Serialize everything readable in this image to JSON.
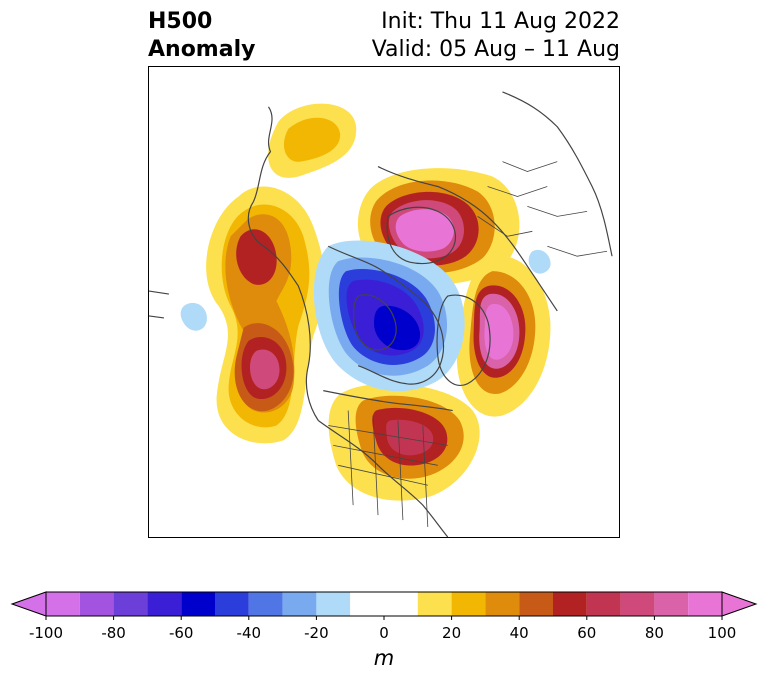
{
  "header": {
    "left_line1": "H500",
    "left_line2": "Anomaly",
    "right_line1": "Init: Thu 11 Aug 2022",
    "right_line2": "Valid: 05 Aug – 11 Aug"
  },
  "colorbar": {
    "unit": "m",
    "min": -100,
    "max": 100,
    "tick_labels": [
      "-100",
      "-80",
      "-60",
      "-40",
      "-20",
      "0",
      "20",
      "40",
      "60",
      "80",
      "100"
    ],
    "tick_values": [
      -100,
      -80,
      -60,
      -40,
      -20,
      0,
      20,
      40,
      60,
      80,
      100
    ],
    "bins": [
      {
        "from": -100,
        "to": -90,
        "color": "#d471e8"
      },
      {
        "from": -90,
        "to": -80,
        "color": "#a253e0"
      },
      {
        "from": -80,
        "to": -70,
        "color": "#6b3fd8"
      },
      {
        "from": -70,
        "to": -60,
        "color": "#3a1fd6"
      },
      {
        "from": -60,
        "to": -50,
        "color": "#0000cc"
      },
      {
        "from": -50,
        "to": -40,
        "color": "#2b3ddb"
      },
      {
        "from": -40,
        "to": -30,
        "color": "#4f76e4"
      },
      {
        "from": -30,
        "to": -20,
        "color": "#79aaf0"
      },
      {
        "from": -20,
        "to": -10,
        "color": "#afdbf8"
      },
      {
        "from": -10,
        "to": 10,
        "color": "#ffffff"
      },
      {
        "from": 10,
        "to": 20,
        "color": "#fde04e"
      },
      {
        "from": 20,
        "to": 30,
        "color": "#f2b703"
      },
      {
        "from": 30,
        "to": 40,
        "color": "#df8b0c"
      },
      {
        "from": 40,
        "to": 50,
        "color": "#c85a18"
      },
      {
        "from": 50,
        "to": 60,
        "color": "#b22222"
      },
      {
        "from": 60,
        "to": 70,
        "color": "#c23552"
      },
      {
        "from": 70,
        "to": 80,
        "color": "#cf4a7a"
      },
      {
        "from": 80,
        "to": 90,
        "color": "#d962a8"
      },
      {
        "from": 90,
        "to": 100,
        "color": "#e874d6"
      }
    ],
    "under_color": "#d471e8",
    "over_color": "#e874d6"
  },
  "map": {
    "projection": "polar stereographic, North America / Arctic",
    "features": [
      "coastlines",
      "country borders",
      "US state boundaries",
      "provinces"
    ],
    "anomaly_centers": [
      {
        "region": "Alaska / Beaufort",
        "sign": "positive",
        "peak_m": 20
      },
      {
        "region": "Gulf of Alaska",
        "sign": "positive",
        "peak_m": 60
      },
      {
        "region": "NE Pacific off Pacific Northwest",
        "sign": "positive",
        "peak_m": 80
      },
      {
        "region": "Far NE Pacific",
        "sign": "negative",
        "peak_m": -20
      },
      {
        "region": "Canadian Arctic / Hudson Bay",
        "sign": "negative",
        "peak_m": -60
      },
      {
        "region": "Scandinavia / N Europe",
        "sign": "positive",
        "peak_m": 90
      },
      {
        "region": "Greenland / N Atlantic",
        "sign": "positive",
        "peak_m": 90
      },
      {
        "region": "Great Lakes / NE US",
        "sign": "positive",
        "peak_m": 60
      },
      {
        "region": "W Russia",
        "sign": "negative",
        "peak_m": -20
      }
    ]
  }
}
